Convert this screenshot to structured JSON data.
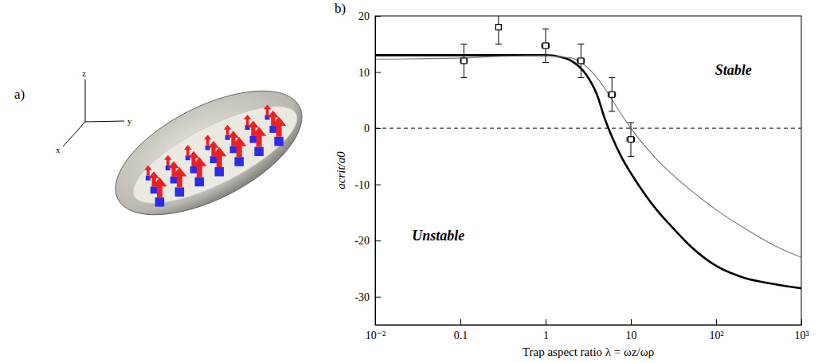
{
  "diagram": {
    "label": "a)",
    "axes": [
      "x",
      "y",
      "z"
    ]
  },
  "chart_data": {
    "type": "line",
    "panel_label": "b)",
    "x_label": "Trap aspect ratio λ = ωz/ωρ",
    "y_label": "acrit/a0",
    "log": "x",
    "xlim": [
      0.01,
      1000
    ],
    "ylim": [
      -35,
      20
    ],
    "xticks": [
      {
        "value": 0.01,
        "label": "10⁻²"
      },
      0.1,
      1,
      10,
      {
        "value": 100,
        "label": "10²"
      },
      {
        "value": 1000,
        "label": "10³"
      }
    ],
    "yticks": [
      -30,
      -20,
      -10,
      0,
      10,
      20
    ],
    "hlines": [
      0
    ],
    "annotations": [
      "Stable",
      "Unstable"
    ],
    "series": [
      {
        "type": "line",
        "color": "#000000",
        "line_style": "solid",
        "x": [
          0.01,
          0.1,
          0.5,
          1,
          1.5,
          2,
          3,
          4,
          5,
          6,
          8,
          10,
          15,
          20,
          30,
          50,
          100,
          200,
          500,
          1000
        ],
        "values": [
          13,
          13,
          13,
          13,
          12.7,
          12,
          9.5,
          6,
          1.5,
          -1.5,
          -5.5,
          -8,
          -12,
          -14.5,
          -17.5,
          -21,
          -24.5,
          -26.5,
          -27.8,
          -28.5
        ]
      },
      {
        "type": "line",
        "color": "#777777",
        "line_style": "solid",
        "x": [
          0.01,
          0.1,
          0.3,
          1,
          2,
          3,
          4,
          5,
          7,
          10,
          20,
          50,
          100,
          200,
          500,
          1000
        ],
        "values": [
          12.3,
          12.5,
          12.8,
          12.9,
          12.5,
          11,
          9,
          7,
          3.5,
          0,
          -5.5,
          -11,
          -14.5,
          -17.5,
          -21,
          -23
        ]
      },
      {
        "type": "scatter",
        "color": "#000000",
        "marker": "square",
        "x": [
          0.11,
          0.28,
          1,
          2.6,
          6,
          10
        ],
        "values": [
          12,
          18,
          14.7,
          12,
          6,
          -2
        ],
        "errors": [
          3,
          3,
          3,
          3,
          3,
          3
        ],
        "x_errors": [
          0.01,
          0.02,
          0.1,
          0.25,
          0.6,
          1
        ]
      }
    ]
  }
}
